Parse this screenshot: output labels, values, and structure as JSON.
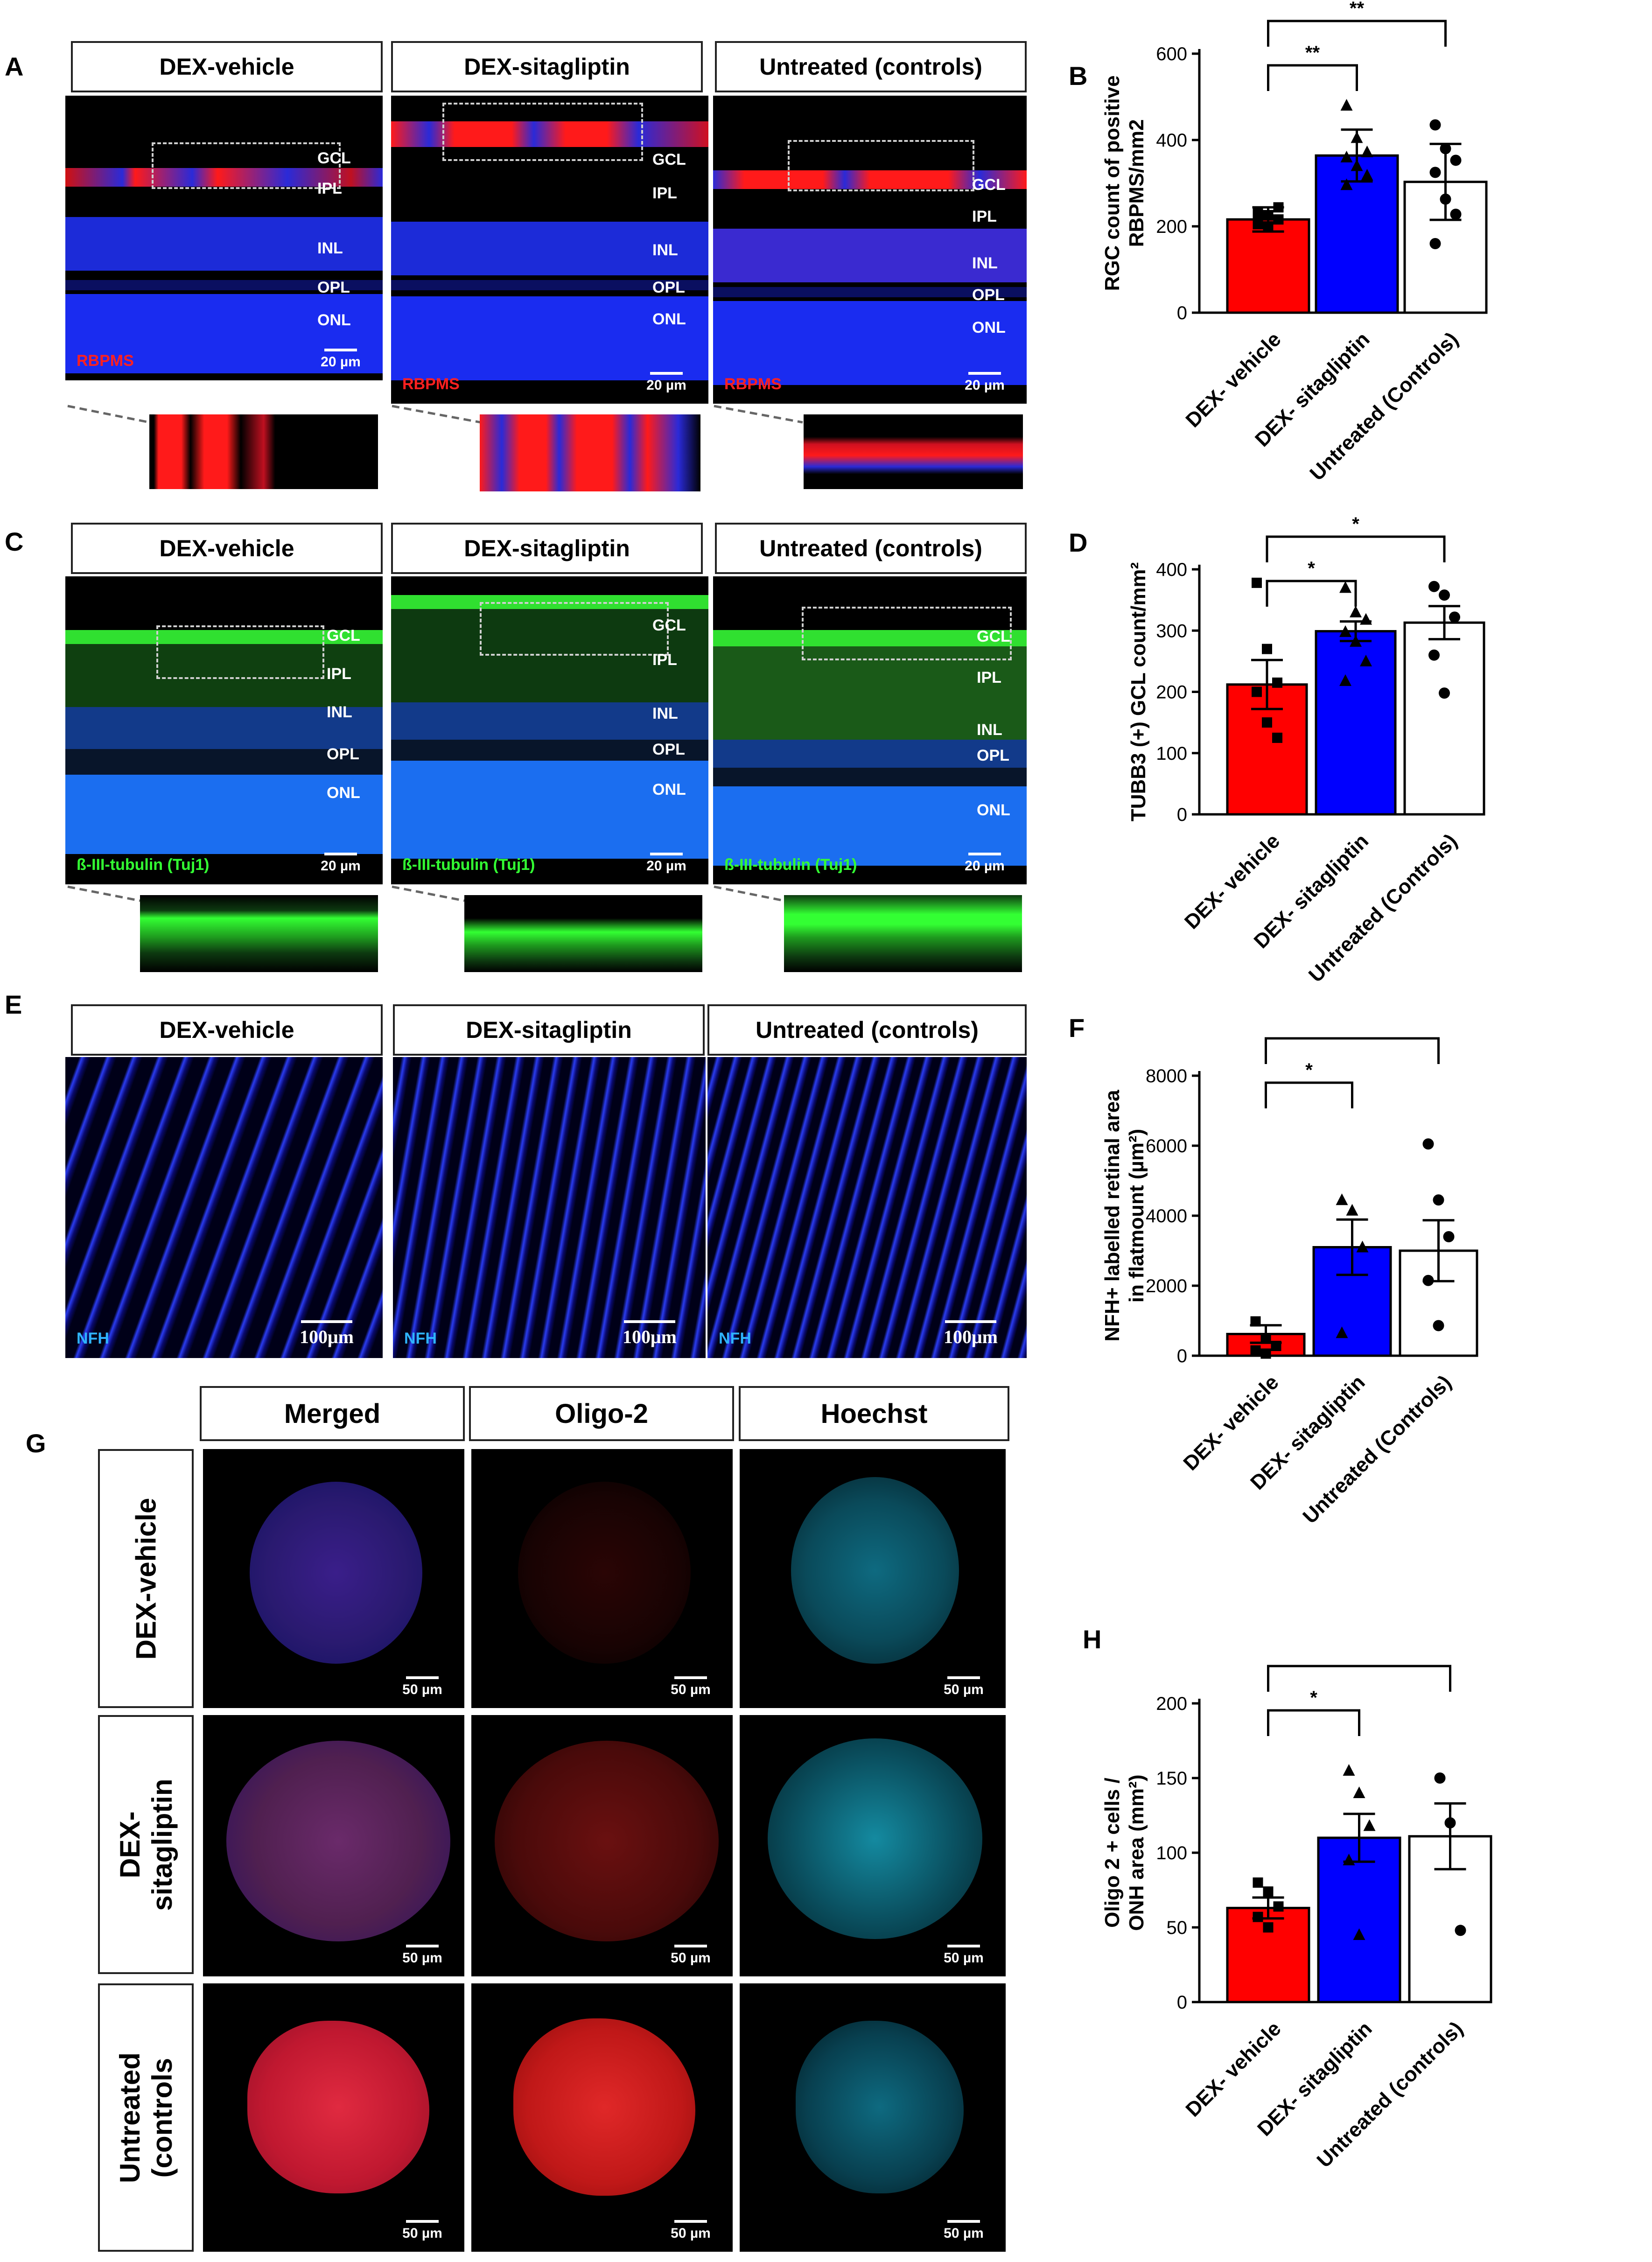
{
  "panel_labels": {
    "a": "A",
    "b": "B",
    "c": "C",
    "d": "D",
    "e": "E",
    "f": "F",
    "g": "G",
    "h": "H"
  },
  "conditions": {
    "vehicle": "DEX-vehicle",
    "sita": "DEX-sitagliptin",
    "untreated": "Untreated (controls)"
  },
  "layers": {
    "gcl": "GCL",
    "ipl": "IPL",
    "inl": "INL",
    "opl": "OPL",
    "onl": "ONL"
  },
  "stains": {
    "rbpms": "RBPMS",
    "tuj1": "ß-III-tubulin (Tuj1)",
    "nfh": "NFH"
  },
  "scale_bars": {
    "um20": "20 µm",
    "um100": "100μm",
    "um50": "50 µm"
  },
  "g_columns": {
    "merged": "Merged",
    "oligo": "Oligo-2",
    "hoechst": "Hoechst"
  },
  "g_rows": {
    "vehicle": "DEX-vehicle",
    "sita_1": "DEX-",
    "sita_2": "sitagliptin",
    "untr_1": "Untreated",
    "untr_2": "(controls"
  },
  "colors": {
    "vehicle": "#ff0000",
    "sitagliptin": "#0000ff",
    "untreated": "#ffffff",
    "nuclei": "#1030ff",
    "rgc": "#ff1a1a",
    "tuj1": "#33ff33",
    "hoechst": "#2ee6f0"
  },
  "chart_data": [
    {
      "panel": "B",
      "type": "bar",
      "categories": [
        "DEX- vehicle",
        "DEX- sitagliptin",
        "Untreated (Controls)"
      ],
      "values": [
        216,
        364,
        303
      ],
      "errors": [
        28,
        60,
        88
      ],
      "points": [
        [
          230,
          226,
          216,
          205,
          200,
          244
        ],
        [
          480,
          405,
          372,
          360,
          340,
          318,
          296
        ],
        [
          435,
          380,
          353,
          325,
          263,
          228,
          160
        ]
      ],
      "markers": [
        "square",
        "triangle",
        "circle"
      ],
      "ylabel_lines": [
        "RGC count of positive",
        "RBPMS/mm2"
      ],
      "ylim": [
        0,
        600
      ],
      "yticks": [
        0,
        200,
        400,
        600
      ],
      "annotations": [
        {
          "pair": [
            0,
            1
          ],
          "text": "**"
        },
        {
          "pair": [
            0,
            2
          ],
          "text": "**"
        }
      ]
    },
    {
      "panel": "D",
      "type": "bar",
      "categories": [
        "DEX- vehicle",
        "DEX- sitagliptin",
        "Untreated (Controls)"
      ],
      "values": [
        212,
        299,
        313
      ],
      "errors": [
        40,
        16,
        27
      ],
      "points": [
        [
          378,
          270,
          215,
          200,
          150,
          125
        ],
        [
          370,
          330,
          318,
          298,
          282,
          250,
          218
        ],
        [
          372,
          358,
          322,
          260,
          198
        ]
      ],
      "markers": [
        "square",
        "triangle",
        "circle"
      ],
      "ylabel_lines": [
        "TUBB3 (+) GCL count/mm²"
      ],
      "ylim": [
        0,
        400
      ],
      "yticks": [
        0,
        100,
        200,
        300,
        400
      ],
      "annotations": [
        {
          "pair": [
            0,
            1
          ],
          "text": "*"
        },
        {
          "pair": [
            0,
            2
          ],
          "text": "*"
        }
      ]
    },
    {
      "panel": "F",
      "type": "bar",
      "categories": [
        "DEX- vehicle",
        "DEX- sitagliptin",
        "Untreated (Controls)"
      ],
      "values": [
        620,
        3100,
        3000
      ],
      "errors": [
        250,
        790,
        870
      ],
      "points": [
        [
          980,
          500,
          280,
          150,
          60
        ],
        [
          4450,
          4150,
          3100,
          650
        ],
        [
          6050,
          4450,
          3400,
          2150,
          860
        ]
      ],
      "markers": [
        "square",
        "triangle",
        "circle"
      ],
      "ylabel_lines": [
        "NFH+ labelled retinal area",
        "in flatmount (µm²)"
      ],
      "ylim": [
        0,
        8000
      ],
      "yticks": [
        0,
        2000,
        4000,
        6000,
        8000
      ],
      "annotations": [
        {
          "pair": [
            0,
            1
          ],
          "text": "*"
        },
        {
          "pair": [
            0,
            2
          ],
          "text": "*"
        }
      ]
    },
    {
      "panel": "H",
      "type": "bar",
      "categories": [
        "DEX- vehicle",
        "DEX- sitagliptin",
        "Untreated (controls)"
      ],
      "values": [
        63,
        110,
        111
      ],
      "errors": [
        7,
        16,
        22
      ],
      "points": [
        [
          80,
          74,
          64,
          57,
          50
        ],
        [
          155,
          140,
          118,
          95,
          45
        ],
        [
          150,
          120,
          48
        ]
      ],
      "markers": [
        "square",
        "triangle",
        "circle"
      ],
      "ylabel_lines": [
        "Oligo 2 + cells /",
        "ONH area (mm²)"
      ],
      "ylim": [
        0,
        200
      ],
      "yticks": [
        0,
        50,
        100,
        150,
        200
      ],
      "annotations": [
        {
          "pair": [
            0,
            1
          ],
          "text": "*"
        },
        {
          "pair": [
            0,
            2
          ],
          "text": "*"
        }
      ]
    }
  ]
}
